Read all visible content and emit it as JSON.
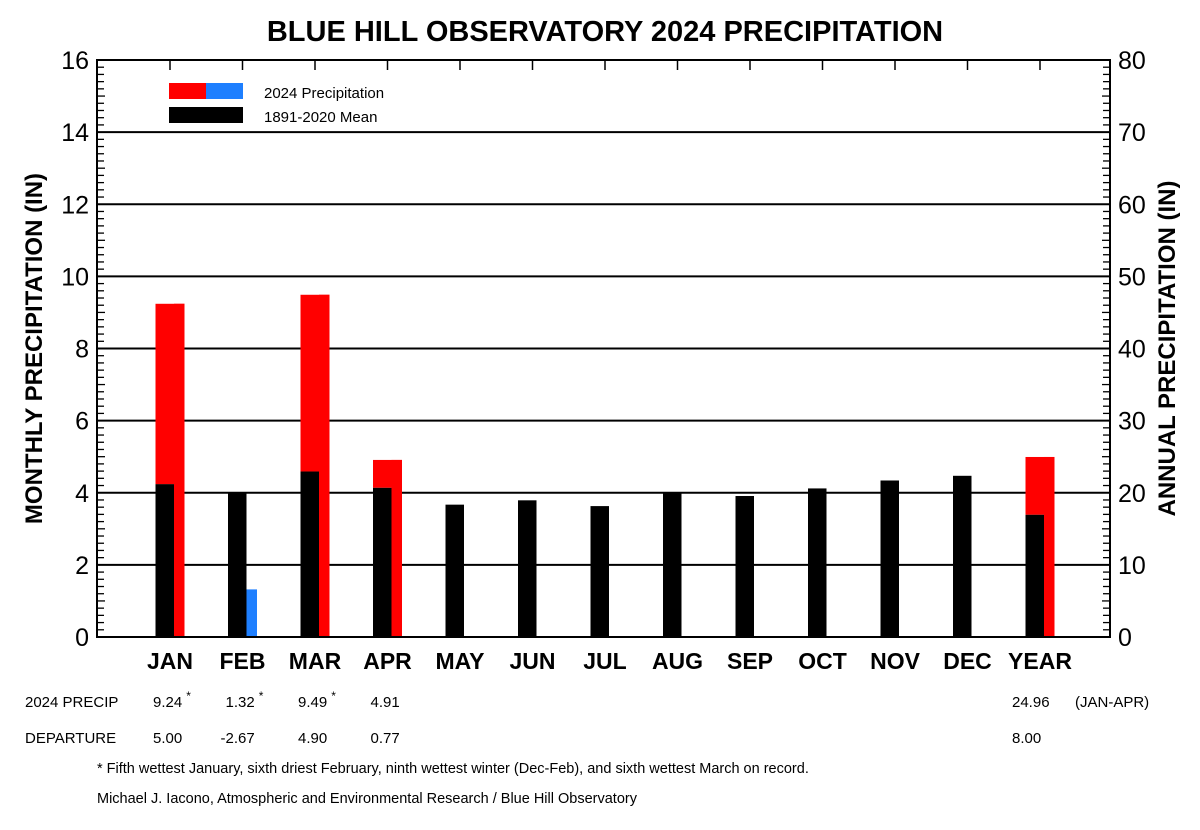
{
  "chart_data": {
    "type": "bar",
    "title": "BLUE HILL OBSERVATORY 2024 PRECIPITATION",
    "ylabel": "MONTHLY PRECIPITATION (IN)",
    "ylabel_right": "ANNUAL PRECIPITATION (IN)",
    "ylim": [
      0,
      16
    ],
    "ylim_right": [
      0,
      80
    ],
    "yticks": [
      "0",
      "2",
      "4",
      "6",
      "8",
      "10",
      "12",
      "14",
      "16"
    ],
    "yticks_right": [
      "0",
      "10",
      "20",
      "30",
      "40",
      "50",
      "60",
      "70",
      "80"
    ],
    "grid": true,
    "legend_position": "top-left",
    "legend": [
      "2024 Precipitation",
      "1891-2020 Mean"
    ],
    "categories": [
      "JAN",
      "FEB",
      "MAR",
      "APR",
      "MAY",
      "JUN",
      "JUL",
      "AUG",
      "SEP",
      "OCT",
      "NOV",
      "DEC",
      "YEAR"
    ],
    "series": [
      {
        "name": "1891-2020 Mean",
        "values": [
          4.24,
          3.99,
          4.59,
          4.14,
          3.67,
          3.79,
          3.63,
          3.99,
          3.91,
          4.12,
          4.34,
          4.47,
          16.96
        ],
        "color": "#000000"
      },
      {
        "name": "2024 Precipitation",
        "values": [
          9.24,
          1.32,
          9.49,
          4.91,
          null,
          null,
          null,
          null,
          null,
          null,
          null,
          null,
          24.96
        ],
        "colors": [
          "#ff0000",
          "#1e7fff",
          "#ff0000",
          "#ff0000",
          null,
          null,
          null,
          null,
          null,
          null,
          null,
          null,
          "#ff0000"
        ]
      }
    ],
    "note": "YEAR values use right axis (annual)"
  },
  "colors": {
    "above": "#ff0000",
    "below": "#1e7fff",
    "mean": "#000000"
  },
  "table": {
    "precip_label": "2024 PRECIP",
    "departure_label": "DEPARTURE",
    "precip": [
      "9.24",
      "1.32",
      "9.49",
      "4.91"
    ],
    "precip_star": [
      "*",
      "*",
      "*",
      ""
    ],
    "departure": [
      "5.00",
      "-2.67",
      "4.90",
      "0.77"
    ],
    "year_precip": "24.96",
    "year_period": "(JAN-APR)",
    "year_departure": "8.00"
  },
  "footnote": "* Fifth wettest January, sixth driest February, ninth wettest winter (Dec-Feb), and sixth wettest March on record.",
  "credit": "Michael J. Iacono, Atmospheric and Environmental Research / Blue Hill Observatory"
}
